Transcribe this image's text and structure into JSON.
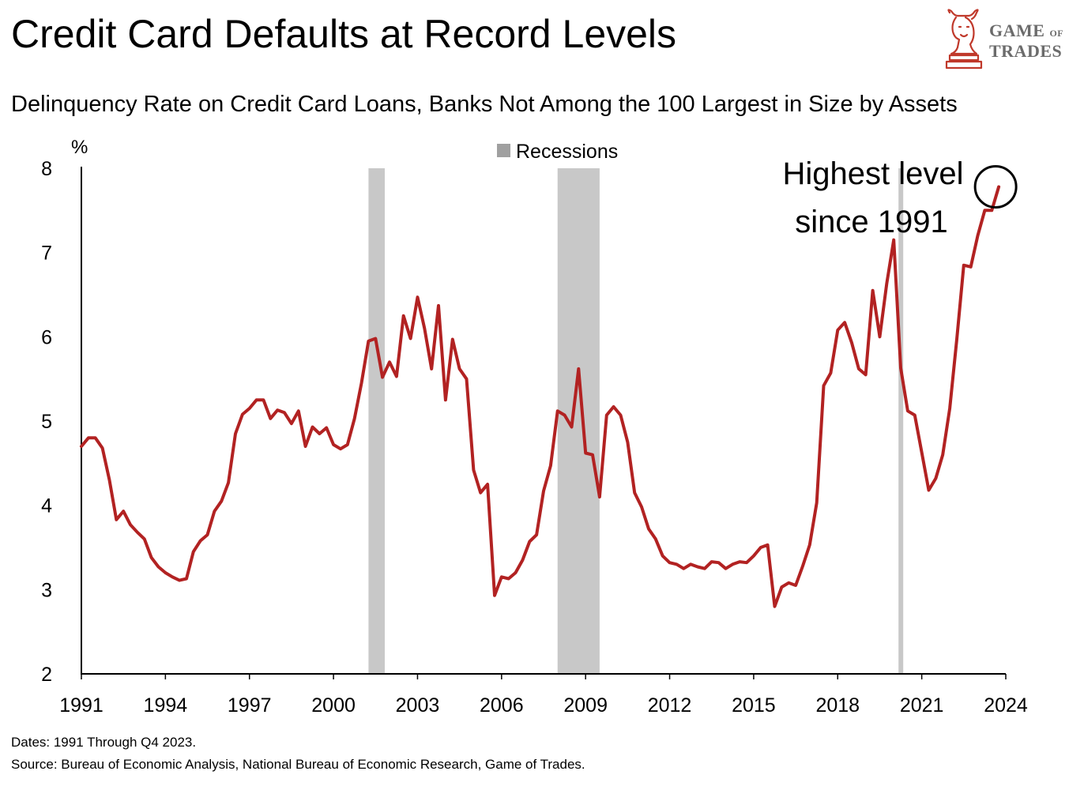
{
  "header": {
    "title": "Credit Card Defaults at Record Levels",
    "subtitle": "Delinquency Rate on Credit Card Loans, Banks Not Among the 100 Largest in Size by Assets"
  },
  "logo": {
    "line1_a": "GAME",
    "line1_b": "OF",
    "line2": "TRADES",
    "icon": "bull-chess-knight-icon",
    "color": "#c0392b"
  },
  "footer": {
    "dates": "Dates: 1991 Through Q4 2023.",
    "source": "Source: Bureau of Economic Analysis, National Bureau of Economic Research, Game of Trades."
  },
  "chart_data": {
    "type": "line",
    "title": "Credit Card Defaults at Record Levels",
    "subtitle": "Delinquency Rate on Credit Card Loans, Banks Not Among the 100 Largest in Size by Assets",
    "ylabel": "%",
    "xlabel": "",
    "ylim": [
      2,
      8
    ],
    "xlim": [
      1991,
      2024
    ],
    "yticks": [
      2,
      3,
      4,
      5,
      6,
      7,
      8
    ],
    "xticks": [
      1991,
      1994,
      1997,
      2000,
      2003,
      2006,
      2009,
      2012,
      2015,
      2018,
      2021,
      2024
    ],
    "grid": false,
    "line_color": "#b22222",
    "recession_color": "#c8c8c8",
    "legend": {
      "label": "Recessions",
      "position": "top-center"
    },
    "annotation": {
      "text_line1": "Highest level",
      "text_line2": "since 1991",
      "x": 2023.75,
      "y": 7.78
    },
    "recessions": [
      {
        "start": 2001.25,
        "end": 2001.83
      },
      {
        "start": 2008.0,
        "end": 2009.5
      },
      {
        "start": 2020.17,
        "end": 2020.33
      }
    ],
    "series": [
      {
        "values": [
          [
            1991.0,
            4.7
          ],
          [
            1991.25,
            4.8
          ],
          [
            1991.5,
            4.8
          ],
          [
            1991.75,
            4.68
          ],
          [
            1992.0,
            4.3
          ],
          [
            1992.25,
            3.83
          ],
          [
            1992.5,
            3.93
          ],
          [
            1992.75,
            3.77
          ],
          [
            1993.0,
            3.68
          ],
          [
            1993.25,
            3.6
          ],
          [
            1993.5,
            3.38
          ],
          [
            1993.75,
            3.27
          ],
          [
            1994.0,
            3.2
          ],
          [
            1994.25,
            3.15
          ],
          [
            1994.5,
            3.11
          ],
          [
            1994.75,
            3.13
          ],
          [
            1995.0,
            3.45
          ],
          [
            1995.25,
            3.58
          ],
          [
            1995.5,
            3.65
          ],
          [
            1995.75,
            3.93
          ],
          [
            1996.0,
            4.05
          ],
          [
            1996.25,
            4.27
          ],
          [
            1996.5,
            4.85
          ],
          [
            1996.75,
            5.08
          ],
          [
            1997.0,
            5.15
          ],
          [
            1997.25,
            5.25
          ],
          [
            1997.5,
            5.25
          ],
          [
            1997.75,
            5.03
          ],
          [
            1998.0,
            5.13
          ],
          [
            1998.25,
            5.1
          ],
          [
            1998.5,
            4.97
          ],
          [
            1998.75,
            5.12
          ],
          [
            1999.0,
            4.7
          ],
          [
            1999.25,
            4.93
          ],
          [
            1999.5,
            4.85
          ],
          [
            1999.75,
            4.92
          ],
          [
            2000.0,
            4.72
          ],
          [
            2000.25,
            4.67
          ],
          [
            2000.5,
            4.72
          ],
          [
            2000.75,
            5.03
          ],
          [
            2001.0,
            5.45
          ],
          [
            2001.25,
            5.95
          ],
          [
            2001.5,
            5.98
          ],
          [
            2001.75,
            5.52
          ],
          [
            2002.0,
            5.7
          ],
          [
            2002.25,
            5.53
          ],
          [
            2002.5,
            6.25
          ],
          [
            2002.75,
            5.98
          ],
          [
            2003.0,
            6.47
          ],
          [
            2003.25,
            6.1
          ],
          [
            2003.5,
            5.62
          ],
          [
            2003.75,
            6.37
          ],
          [
            2004.0,
            5.25
          ],
          [
            2004.25,
            5.97
          ],
          [
            2004.5,
            5.62
          ],
          [
            2004.75,
            5.5
          ],
          [
            2005.0,
            4.42
          ],
          [
            2005.25,
            4.15
          ],
          [
            2005.5,
            4.25
          ],
          [
            2005.75,
            2.93
          ],
          [
            2006.0,
            3.15
          ],
          [
            2006.25,
            3.13
          ],
          [
            2006.5,
            3.2
          ],
          [
            2006.75,
            3.35
          ],
          [
            2007.0,
            3.57
          ],
          [
            2007.25,
            3.65
          ],
          [
            2007.5,
            4.17
          ],
          [
            2007.75,
            4.47
          ],
          [
            2008.0,
            5.12
          ],
          [
            2008.25,
            5.07
          ],
          [
            2008.5,
            4.93
          ],
          [
            2008.75,
            5.62
          ],
          [
            2009.0,
            4.62
          ],
          [
            2009.25,
            4.6
          ],
          [
            2009.5,
            4.1
          ],
          [
            2009.75,
            5.07
          ],
          [
            2010.0,
            5.17
          ],
          [
            2010.25,
            5.07
          ],
          [
            2010.5,
            4.75
          ],
          [
            2010.75,
            4.15
          ],
          [
            2011.0,
            3.98
          ],
          [
            2011.25,
            3.72
          ],
          [
            2011.5,
            3.6
          ],
          [
            2011.75,
            3.4
          ],
          [
            2012.0,
            3.32
          ],
          [
            2012.25,
            3.3
          ],
          [
            2012.5,
            3.25
          ],
          [
            2012.75,
            3.3
          ],
          [
            2013.0,
            3.27
          ],
          [
            2013.25,
            3.25
          ],
          [
            2013.5,
            3.33
          ],
          [
            2013.75,
            3.32
          ],
          [
            2014.0,
            3.25
          ],
          [
            2014.25,
            3.3
          ],
          [
            2014.5,
            3.33
          ],
          [
            2014.75,
            3.32
          ],
          [
            2015.0,
            3.4
          ],
          [
            2015.25,
            3.5
          ],
          [
            2015.5,
            3.53
          ],
          [
            2015.75,
            2.8
          ],
          [
            2016.0,
            3.03
          ],
          [
            2016.25,
            3.08
          ],
          [
            2016.5,
            3.05
          ],
          [
            2016.75,
            3.28
          ],
          [
            2017.0,
            3.53
          ],
          [
            2017.25,
            4.03
          ],
          [
            2017.5,
            5.42
          ],
          [
            2017.75,
            5.57
          ],
          [
            2018.0,
            6.08
          ],
          [
            2018.25,
            6.17
          ],
          [
            2018.5,
            5.93
          ],
          [
            2018.75,
            5.62
          ],
          [
            2019.0,
            5.55
          ],
          [
            2019.25,
            6.55
          ],
          [
            2019.5,
            6.0
          ],
          [
            2019.75,
            6.63
          ],
          [
            2020.0,
            7.15
          ],
          [
            2020.25,
            5.63
          ],
          [
            2020.5,
            5.12
          ],
          [
            2020.75,
            5.07
          ],
          [
            2021.0,
            4.63
          ],
          [
            2021.25,
            4.18
          ],
          [
            2021.5,
            4.32
          ],
          [
            2021.75,
            4.6
          ],
          [
            2022.0,
            5.15
          ],
          [
            2022.25,
            5.97
          ],
          [
            2022.5,
            6.85
          ],
          [
            2022.75,
            6.83
          ],
          [
            2023.0,
            7.2
          ],
          [
            2023.25,
            7.5
          ],
          [
            2023.5,
            7.5
          ],
          [
            2023.75,
            7.78
          ]
        ]
      }
    ]
  }
}
